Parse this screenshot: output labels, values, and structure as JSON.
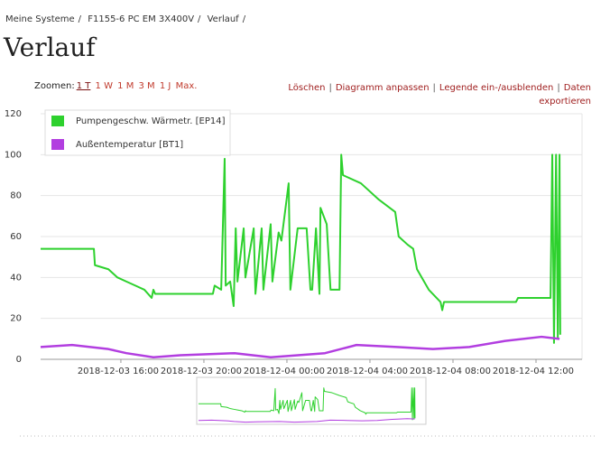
{
  "breadcrumb": {
    "items": [
      "Meine Systeme",
      "F1155-6 PC EM 3X400V",
      "Verlauf"
    ],
    "separator": "/"
  },
  "title": "Verlauf",
  "zoom": {
    "label": "Zoomen:",
    "options": [
      "1 T",
      "1 W",
      "1 M",
      "3 M",
      "1 J",
      "Max."
    ],
    "active_index": 0
  },
  "actions": {
    "items": [
      "Löschen",
      "Diagramm anpassen",
      "Legende ein-/ausblenden",
      "Daten exportieren"
    ],
    "separator": "|"
  },
  "chart_data": {
    "type": "line",
    "xlim": [
      "2018-12-03 12:08",
      "2018-12-04 14:13"
    ],
    "xticks": [
      "2018-12-03 16:00",
      "2018-12-03 20:00",
      "2018-12-04 00:00",
      "2018-12-04 04:00",
      "2018-12-04 08:00",
      "2018-12-04 12:00"
    ],
    "ylim": [
      0,
      120
    ],
    "yticks": [
      0,
      20,
      40,
      60,
      80,
      100,
      120
    ],
    "grid": true,
    "legend": "top-left",
    "series": [
      {
        "name": "Pumpengeschw. Wärmetr. [EP14]",
        "color": "#2ed12e",
        "x": [
          "2018-12-03 12:08",
          "2018-12-03 14:42",
          "2018-12-03 14:45",
          "2018-12-03 15:24",
          "2018-12-03 15:50",
          "2018-12-03 16:16",
          "2018-12-03 16:42",
          "2018-12-03 17:08",
          "2018-12-03 17:29",
          "2018-12-03 17:34",
          "2018-12-03 17:39",
          "2018-12-03 20:26",
          "2018-12-03 20:31",
          "2018-12-03 20:50",
          "2018-12-03 21:00",
          "2018-12-03 21:03",
          "2018-12-03 21:16",
          "2018-12-03 21:26",
          "2018-12-03 21:32",
          "2018-12-03 21:37",
          "2018-12-03 21:55",
          "2018-12-03 22:00",
          "2018-12-03 22:24",
          "2018-12-03 22:29",
          "2018-12-03 22:47",
          "2018-12-03 22:52",
          "2018-12-03 23:13",
          "2018-12-03 23:18",
          "2018-12-03 23:36",
          "2018-12-03 23:44",
          "2018-12-04 00:05",
          "2018-12-04 00:10",
          "2018-12-04 00:31",
          "2018-12-04 00:57",
          "2018-12-04 01:08",
          "2018-12-04 01:13",
          "2018-12-04 01:24",
          "2018-12-04 01:34",
          "2018-12-04 01:37",
          "2018-12-04 01:55",
          "2018-12-04 02:06",
          "2018-12-04 02:32",
          "2018-12-04 02:37",
          "2018-12-04 02:42",
          "2018-12-04 03:34",
          "2018-12-04 04:26",
          "2018-12-04 05:13",
          "2018-12-04 05:23",
          "2018-12-04 05:49",
          "2018-12-04 06:05",
          "2018-12-04 06:16",
          "2018-12-04 06:50",
          "2018-12-04 07:24",
          "2018-12-04 07:29",
          "2018-12-04 07:34",
          "2018-12-04 11:02",
          "2018-12-04 11:08",
          "2018-12-04 12:42",
          "2018-12-04 12:47",
          "2018-12-04 12:52",
          "2018-12-04 12:58",
          "2018-12-04 13:03",
          "2018-12-04 13:08",
          "2018-12-04 13:10"
        ],
        "values": [
          54,
          54,
          46,
          44,
          40,
          38,
          36,
          34,
          30,
          34,
          32,
          32,
          36,
          34,
          98,
          36,
          38,
          26,
          64,
          38,
          64,
          40,
          64,
          32,
          64,
          34,
          66,
          38,
          62,
          58,
          86,
          34,
          64,
          64,
          34,
          34,
          64,
          32,
          74,
          66,
          34,
          34,
          100,
          90,
          86,
          78,
          72,
          60,
          56,
          54,
          44,
          34,
          28,
          24,
          28,
          28,
          30,
          30,
          100,
          8,
          100,
          10,
          100,
          12
        ]
      },
      {
        "name": "Außentemperatur [BT1]",
        "color": "#b23ee0",
        "x": [
          "2018-12-03 12:08",
          "2018-12-03 13:39",
          "2018-12-03 15:24",
          "2018-12-03 16:16",
          "2018-12-03 17:34",
          "2018-12-03 18:52",
          "2018-12-03 21:29",
          "2018-12-03 23:13",
          "2018-12-04 01:50",
          "2018-12-04 03:21",
          "2018-12-04 05:18",
          "2018-12-04 07:02",
          "2018-12-04 08:47",
          "2018-12-04 10:31",
          "2018-12-04 12:16",
          "2018-12-04 13:08"
        ],
        "values": [
          6,
          7,
          5,
          3,
          1,
          2,
          3,
          1,
          3,
          7,
          6,
          5,
          6,
          9,
          11,
          10
        ]
      }
    ]
  }
}
